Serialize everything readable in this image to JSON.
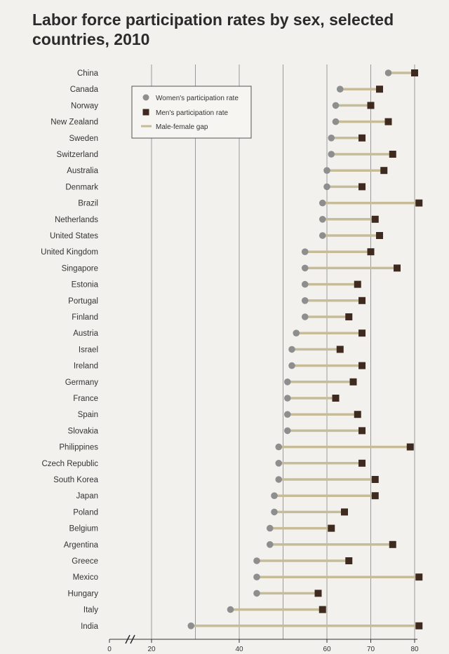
{
  "chart_data": {
    "type": "dumbbell",
    "title": "Labor force participation rates by sex, selected countries, 2010",
    "xlim": [
      0,
      90
    ],
    "x_ticks": [
      0,
      20,
      40,
      60,
      70,
      80
    ],
    "x_break_between": [
      0,
      20
    ],
    "grid": true,
    "legend_placement": "top-left",
    "legend": {
      "women": "Women's participation rate",
      "men": "Men's participation rate",
      "gap": "Male-female gap"
    },
    "colors": {
      "women": "#8e8e8e",
      "men": "#3e2a1e",
      "gap": "#c6bd98",
      "grid": "#9a9a9a"
    },
    "countries": [
      {
        "name": "China",
        "women": 74,
        "men": 80
      },
      {
        "name": "Canada",
        "women": 63,
        "men": 72
      },
      {
        "name": "Norway",
        "women": 62,
        "men": 70
      },
      {
        "name": "New Zealand",
        "women": 62,
        "men": 74
      },
      {
        "name": "Sweden",
        "women": 61,
        "men": 68
      },
      {
        "name": "Switzerland",
        "women": 61,
        "men": 75
      },
      {
        "name": "Australia",
        "women": 60,
        "men": 73
      },
      {
        "name": "Denmark",
        "women": 60,
        "men": 68
      },
      {
        "name": "Brazil",
        "women": 59,
        "men": 81
      },
      {
        "name": "Netherlands",
        "women": 59,
        "men": 71
      },
      {
        "name": "United States",
        "women": 59,
        "men": 72
      },
      {
        "name": "United Kingdom",
        "women": 55,
        "men": 70
      },
      {
        "name": "Singapore",
        "women": 55,
        "men": 76
      },
      {
        "name": "Estonia",
        "women": 55,
        "men": 67
      },
      {
        "name": "Portugal",
        "women": 55,
        "men": 68
      },
      {
        "name": "Finland",
        "women": 55,
        "men": 65
      },
      {
        "name": "Austria",
        "women": 53,
        "men": 68
      },
      {
        "name": "Israel",
        "women": 52,
        "men": 63
      },
      {
        "name": "Ireland",
        "women": 52,
        "men": 68
      },
      {
        "name": "Germany",
        "women": 51,
        "men": 66
      },
      {
        "name": "France",
        "women": 51,
        "men": 62
      },
      {
        "name": "Spain",
        "women": 51,
        "men": 67
      },
      {
        "name": "Slovakia",
        "women": 51,
        "men": 68
      },
      {
        "name": "Philippines",
        "women": 49,
        "men": 79
      },
      {
        "name": "Czech Republic",
        "women": 49,
        "men": 68
      },
      {
        "name": "South Korea",
        "women": 49,
        "men": 71
      },
      {
        "name": "Japan",
        "women": 48,
        "men": 71
      },
      {
        "name": "Poland",
        "women": 48,
        "men": 64
      },
      {
        "name": "Belgium",
        "women": 47,
        "men": 61
      },
      {
        "name": "Argentina",
        "women": 47,
        "men": 75
      },
      {
        "name": "Greece",
        "women": 44,
        "men": 65
      },
      {
        "name": "Mexico",
        "women": 44,
        "men": 81
      },
      {
        "name": "Hungary",
        "women": 44,
        "men": 58
      },
      {
        "name": "Italy",
        "women": 38,
        "men": 59
      },
      {
        "name": "India",
        "women": 29,
        "men": 81
      }
    ]
  }
}
